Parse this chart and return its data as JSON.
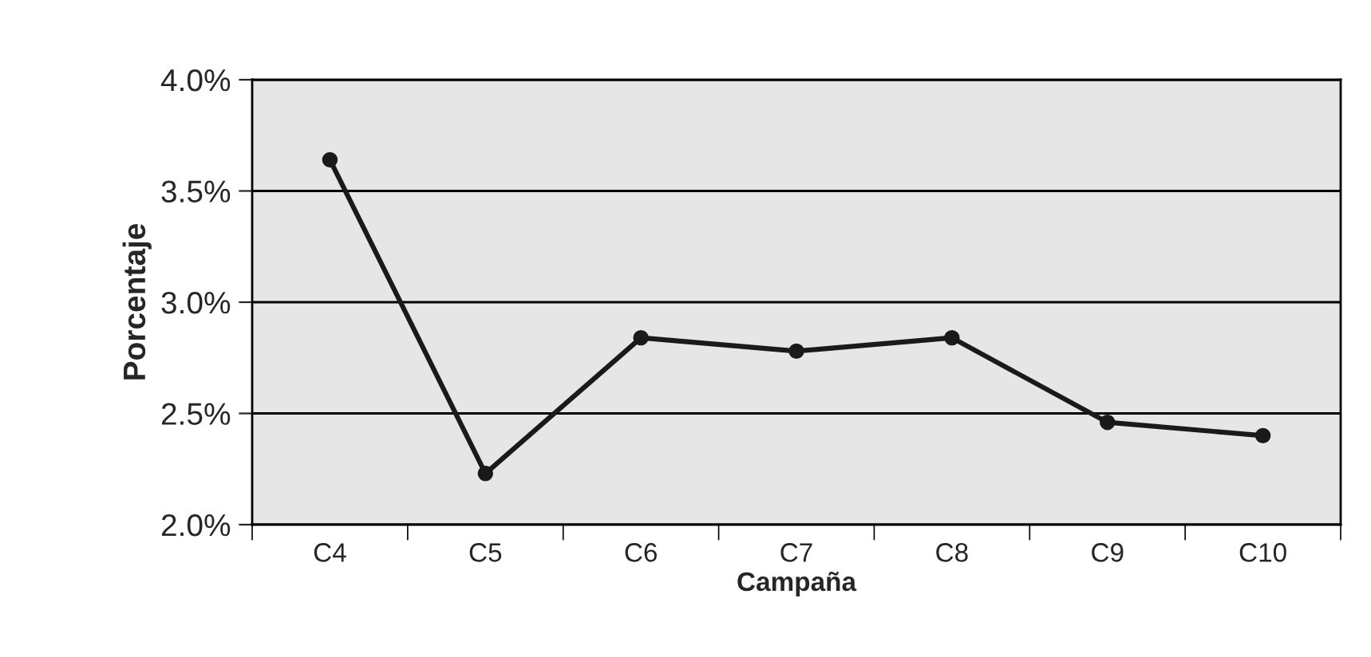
{
  "chart_data": {
    "type": "line",
    "xlabel": "Campaña",
    "ylabel": "Porcentaje",
    "categories": [
      "C4",
      "C5",
      "C6",
      "C7",
      "C8",
      "C9",
      "C10"
    ],
    "series": [
      {
        "color": "#1a1a1a",
        "values": [
          3.64,
          2.23,
          2.84,
          2.78,
          2.84,
          2.46,
          2.4
        ]
      }
    ],
    "ylim": [
      2.0,
      4.0
    ],
    "yticks": [
      {
        "value": 2.0,
        "label": "2.0%"
      },
      {
        "value": 2.5,
        "label": "2.5%"
      },
      {
        "value": 3.0,
        "label": "3.0%"
      },
      {
        "value": 3.5,
        "label": "3.5%"
      },
      {
        "value": 4.0,
        "label": "4.0%"
      }
    ],
    "grid": "y",
    "marker": "circle",
    "line_style": "solid",
    "legend": false
  }
}
